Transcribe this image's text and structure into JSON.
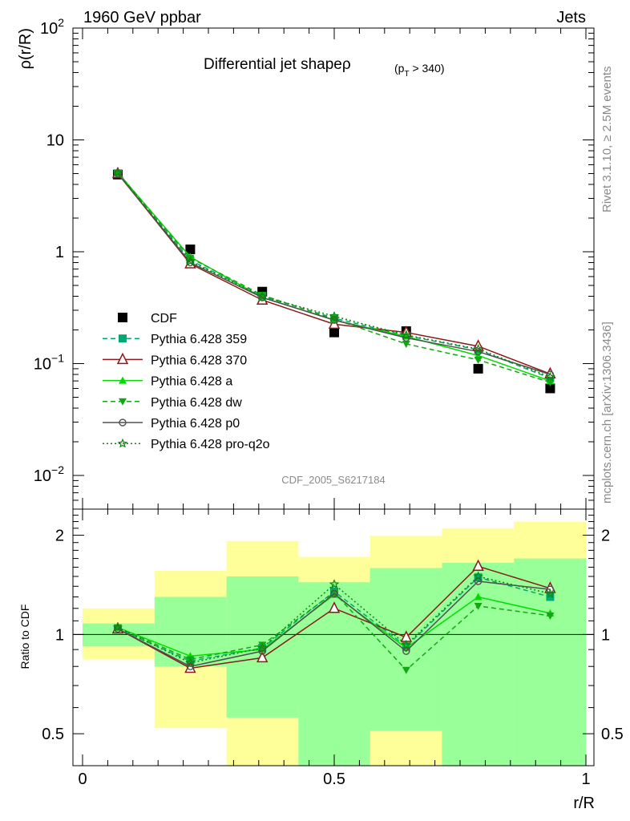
{
  "header": {
    "left": "1960 GeV ppbar",
    "right": "Jets"
  },
  "side_labels": {
    "upper": "Rivet 3.1.10, ≥ 2.5M events",
    "lower": "mcplots.cern.ch [arXiv:1306.3436]"
  },
  "watermark": "CDF_2005_S6217184",
  "chart_data": [
    {
      "type": "line",
      "title_main": "Differential jet shapeρ",
      "title_sub": "(p",
      "title_sub_index": "T",
      "title_sub_rest": " > 340)",
      "ylabel": "ρ(r/R)",
      "yscale": "log",
      "ylim": [
        0.005,
        100
      ],
      "xlim": [
        0,
        1
      ],
      "yticks": [
        {
          "v": 0.01,
          "base": "10",
          "exp": "−2"
        },
        {
          "v": 0.1,
          "base": "10",
          "exp": "−1"
        },
        {
          "v": 1,
          "base": "1",
          "exp": ""
        },
        {
          "v": 10,
          "base": "10",
          "exp": ""
        },
        {
          "v": 100,
          "base": "10",
          "exp": "2"
        }
      ],
      "x": [
        0.07,
        0.214,
        0.357,
        0.5,
        0.643,
        0.786,
        0.929
      ],
      "legend_position": "bottom-left",
      "series": [
        {
          "name": "CDF",
          "style": "data",
          "color": "#000000",
          "marker": "square-filled",
          "values": [
            4.9,
            1.05,
            0.44,
            0.19,
            0.195,
            0.09,
            0.06
          ]
        },
        {
          "name": "Pythia 6.428 359",
          "color": "#00a876",
          "dash": "6,4",
          "marker": "square-filled",
          "values": [
            5.0,
            0.84,
            0.4,
            0.255,
            0.178,
            0.133,
            0.074
          ]
        },
        {
          "name": "Pythia 6.428 370",
          "color": "#8b1a1a",
          "dash": "",
          "marker": "triangle-open",
          "values": [
            5.0,
            0.78,
            0.37,
            0.225,
            0.19,
            0.143,
            0.081
          ]
        },
        {
          "name": "Pythia 6.428 a",
          "color": "#00dd00",
          "dash": "",
          "marker": "triangle-filled",
          "values": [
            5.1,
            0.9,
            0.39,
            0.245,
            0.175,
            0.118,
            0.07
          ]
        },
        {
          "name": "Pythia 6.428 dw",
          "color": "#12a812",
          "dash": "6,4",
          "marker": "triangle-down-filled",
          "values": [
            5.1,
            0.88,
            0.41,
            0.25,
            0.15,
            0.108,
            0.068
          ]
        },
        {
          "name": "Pythia 6.428 p0",
          "color": "#505050",
          "dash": "",
          "marker": "circle-open",
          "values": [
            5.0,
            0.8,
            0.39,
            0.245,
            0.17,
            0.128,
            0.08
          ]
        },
        {
          "name": "Pythia 6.428 pro-q2o",
          "color": "#0a8a0a",
          "dash": "2,3",
          "marker": "star-open",
          "values": [
            5.05,
            0.82,
            0.4,
            0.265,
            0.18,
            0.135,
            0.076
          ]
        }
      ]
    },
    {
      "type": "line",
      "ylabel": "Ratio to CDF",
      "yscale": "log",
      "ylim": [
        0.4,
        2.4
      ],
      "xlim": [
        0,
        1
      ],
      "xlabel": "r/R",
      "yticks": [
        {
          "v": 0.5,
          "label": "0.5"
        },
        {
          "v": 1,
          "label": "1"
        },
        {
          "v": 2,
          "label": "2"
        }
      ],
      "xticks": [
        {
          "v": 0,
          "label": "0"
        },
        {
          "v": 0.5,
          "label": "0.5"
        },
        {
          "v": 1,
          "label": "1"
        }
      ],
      "bands": {
        "x_edges": [
          0,
          0.143,
          0.286,
          0.429,
          0.571,
          0.714,
          0.857,
          1.0
        ],
        "yellow": [
          [
            0.84,
            1.2
          ],
          [
            0.52,
            1.56
          ],
          [
            0.25,
            1.92
          ],
          [
            0.72,
            1.72
          ],
          [
            0.22,
            1.99
          ],
          [
            0.37,
            2.1
          ],
          [
            0.25,
            2.2
          ]
        ],
        "green": [
          [
            0.92,
            1.08
          ],
          [
            0.8,
            1.3
          ],
          [
            0.56,
            1.5
          ],
          [
            0.4,
            1.44
          ],
          [
            0.51,
            1.59
          ],
          [
            0.38,
            1.65
          ],
          [
            0.38,
            1.7
          ]
        ],
        "yellow_color": "#ffff99",
        "green_color": "#99ff99"
      },
      "x": [
        0.07,
        0.214,
        0.357,
        0.5,
        0.643,
        0.786,
        0.929
      ],
      "series": [
        {
          "name": "Pythia 6.428 359",
          "color": "#00a876",
          "dash": "6,4",
          "marker": "square-filled",
          "values": [
            1.04,
            0.83,
            0.91,
            1.35,
            0.92,
            1.49,
            1.3
          ]
        },
        {
          "name": "Pythia 6.428 370",
          "color": "#8b1a1a",
          "dash": "",
          "marker": "triangle-open",
          "values": [
            1.04,
            0.79,
            0.85,
            1.2,
            0.98,
            1.61,
            1.38
          ]
        },
        {
          "name": "Pythia 6.428 a",
          "color": "#00dd00",
          "dash": "",
          "marker": "triangle-filled",
          "values": [
            1.05,
            0.86,
            0.9,
            1.32,
            0.91,
            1.3,
            1.16
          ]
        },
        {
          "name": "Pythia 6.428 dw",
          "color": "#12a812",
          "dash": "6,4",
          "marker": "triangle-down-filled",
          "values": [
            1.05,
            0.84,
            0.93,
            1.34,
            0.78,
            1.22,
            1.14
          ]
        },
        {
          "name": "Pythia 6.428 p0",
          "color": "#505050",
          "dash": "",
          "marker": "circle-open",
          "values": [
            1.04,
            0.8,
            0.89,
            1.33,
            0.89,
            1.45,
            1.37
          ]
        },
        {
          "name": "Pythia 6.428 pro-q2o",
          "color": "#0a8a0a",
          "dash": "2,3",
          "marker": "star-open",
          "values": [
            1.05,
            0.82,
            0.91,
            1.42,
            0.93,
            1.5,
            1.33
          ]
        }
      ]
    }
  ]
}
